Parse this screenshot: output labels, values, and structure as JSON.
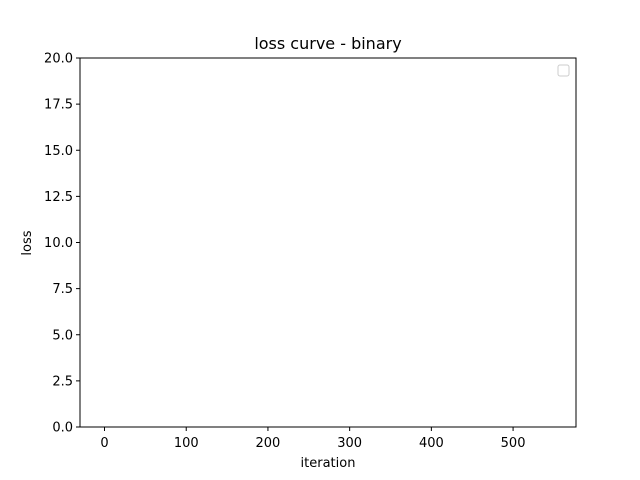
{
  "chart_data": {
    "type": "line",
    "title": "loss curve - binary",
    "xlabel": "iteration",
    "ylabel": "loss",
    "xlim": [
      -30,
      577
    ],
    "ylim": [
      0,
      20
    ],
    "x_ticks": [
      0,
      100,
      200,
      300,
      400,
      500
    ],
    "y_ticks": [
      0.0,
      2.5,
      5.0,
      7.5,
      10.0,
      12.5,
      15.0,
      17.5,
      20.0
    ],
    "x_tick_labels": [
      "0",
      "100",
      "200",
      "300",
      "400",
      "500"
    ],
    "y_tick_labels": [
      "0.0",
      "2.5",
      "5.0",
      "7.5",
      "10.0",
      "12.5",
      "15.0",
      "17.5",
      "20.0"
    ],
    "series": [],
    "grid": false,
    "legend": {
      "position": "top-right",
      "entries": []
    },
    "colors": {
      "axes": "#000000",
      "background": "#ffffff",
      "legend_border": "#cccccc"
    }
  }
}
